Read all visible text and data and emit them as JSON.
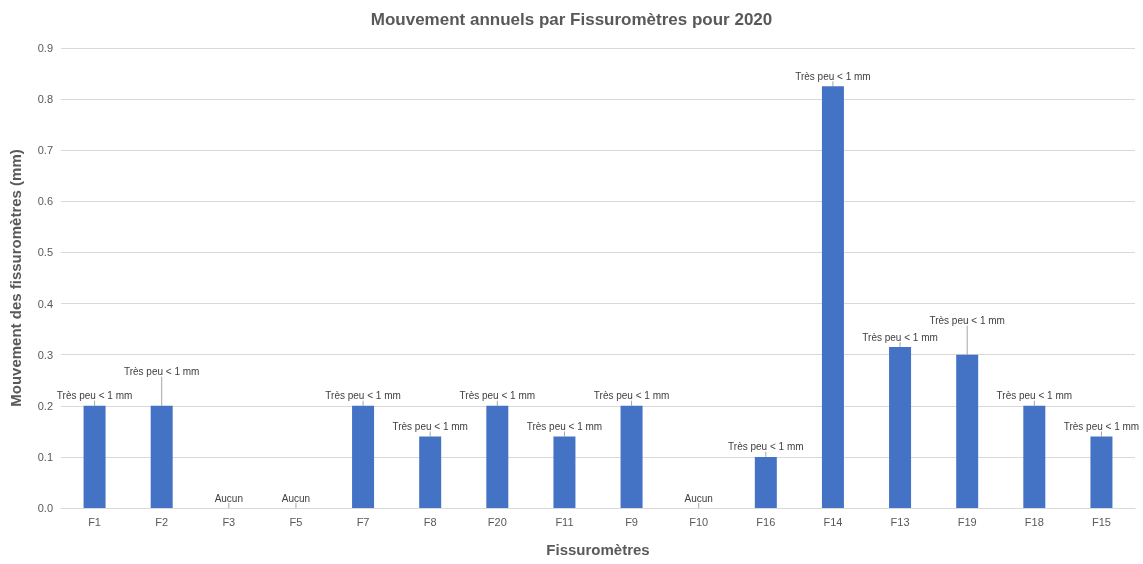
{
  "chart_data": {
    "type": "bar",
    "title": "Mouvement annuels par Fissuromètres pour 2020",
    "xlabel": "Fissuromètres",
    "ylabel": "Mouvement des fissuromètres (mm)",
    "categories": [
      "F1",
      "F2",
      "F3",
      "F5",
      "F7",
      "F8",
      "F20",
      "F11",
      "F9",
      "F10",
      "F16",
      "F14",
      "F13",
      "F19",
      "F18",
      "F15"
    ],
    "values": [
      0.2,
      0.2,
      0,
      0,
      0.2,
      0.14,
      0.2,
      0.14,
      0.2,
      0,
      0.1,
      0.825,
      0.315,
      0.3,
      0.2,
      0.14
    ],
    "value_labels": [
      "Très peu < 1 mm",
      "Très peu < 1 mm",
      "Aucun",
      "Aucun",
      "Très peu < 1 mm",
      "Très peu < 1 mm",
      "Très peu < 1 mm",
      "Très peu < 1 mm",
      "Très peu < 1 mm",
      "Aucun",
      "Très peu < 1 mm",
      "Très peu < 1 mm",
      "Très peu < 1 mm",
      "Très peu < 1 mm",
      "Très peu < 1 mm",
      "Très peu < 1 mm"
    ],
    "color": "#4472c4",
    "ylim": [
      0,
      0.9
    ],
    "yticks": [
      {
        "value": 0,
        "label": "0.0"
      },
      0.1,
      0.2,
      0.3,
      0.4,
      0.5,
      0.6,
      0.7,
      0.8,
      0.9
    ],
    "grid": "y"
  }
}
